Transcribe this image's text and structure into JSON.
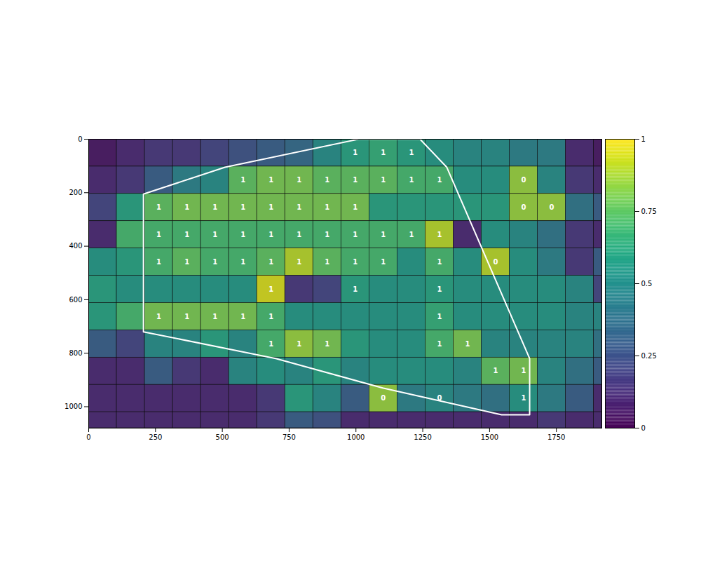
{
  "chart_data": {
    "type": "heatmap",
    "color": "viridis",
    "xlim": [
      0,
      1920
    ],
    "ylim": [
      0,
      1080
    ],
    "xticks": [
      0,
      250,
      500,
      750,
      1000,
      1250,
      1500,
      1750
    ],
    "yticks": [
      0,
      200,
      400,
      600,
      800,
      1000
    ],
    "x_edges": [
      0,
      105,
      210,
      315,
      420,
      525,
      630,
      735,
      840,
      945,
      1050,
      1155,
      1260,
      1365,
      1470,
      1575,
      1680,
      1785,
      1890,
      1920
    ],
    "y_edges": [
      0,
      102,
      204,
      306,
      408,
      510,
      612,
      714,
      816,
      918,
      1020,
      1080
    ],
    "values": [
      [
        0.05,
        0.1,
        0.15,
        0.15,
        0.2,
        0.25,
        0.3,
        0.35,
        0.5,
        0.6,
        0.65,
        0.6,
        0.55,
        0.5,
        0.5,
        0.45,
        0.45,
        0.1,
        0.05
      ],
      [
        0.1,
        0.15,
        0.3,
        0.45,
        0.5,
        0.75,
        0.8,
        0.8,
        0.75,
        0.75,
        0.75,
        0.7,
        0.7,
        0.55,
        0.55,
        0.85,
        0.5,
        0.15,
        0.1
      ],
      [
        0.2,
        0.6,
        0.75,
        0.8,
        0.8,
        0.8,
        0.8,
        0.8,
        0.8,
        0.8,
        0.6,
        0.6,
        0.6,
        0.6,
        0.6,
        0.85,
        0.85,
        0.4,
        0.3
      ],
      [
        0.1,
        0.7,
        0.7,
        0.7,
        0.7,
        0.7,
        0.7,
        0.7,
        0.7,
        0.7,
        0.7,
        0.7,
        0.9,
        0.1,
        0.55,
        0.5,
        0.4,
        0.15,
        0.1
      ],
      [
        0.55,
        0.6,
        0.7,
        0.75,
        0.7,
        0.7,
        0.75,
        0.9,
        0.75,
        0.7,
        0.7,
        0.55,
        0.7,
        0.55,
        0.9,
        0.55,
        0.45,
        0.15,
        0.3
      ],
      [
        0.6,
        0.55,
        0.55,
        0.55,
        0.55,
        0.55,
        0.95,
        0.15,
        0.2,
        0.6,
        0.55,
        0.55,
        0.6,
        0.55,
        0.55,
        0.55,
        0.55,
        0.5,
        0.2
      ],
      [
        0.6,
        0.7,
        0.8,
        0.8,
        0.8,
        0.8,
        0.7,
        0.55,
        0.55,
        0.55,
        0.55,
        0.55,
        0.65,
        0.55,
        0.55,
        0.55,
        0.55,
        0.5,
        0.5
      ],
      [
        0.3,
        0.2,
        0.5,
        0.5,
        0.6,
        0.5,
        0.7,
        0.85,
        0.8,
        0.6,
        0.55,
        0.55,
        0.7,
        0.8,
        0.5,
        0.5,
        0.5,
        0.5,
        0.4
      ],
      [
        0.1,
        0.1,
        0.3,
        0.15,
        0.1,
        0.5,
        0.55,
        0.5,
        0.6,
        0.5,
        0.55,
        0.55,
        0.55,
        0.5,
        0.75,
        0.8,
        0.5,
        0.4,
        0.3
      ],
      [
        0.1,
        0.1,
        0.1,
        0.1,
        0.1,
        0.1,
        0.15,
        0.6,
        0.5,
        0.3,
        0.85,
        0.45,
        0.5,
        0.45,
        0.4,
        0.55,
        0.45,
        0.3,
        0.1
      ],
      [
        0.1,
        0.1,
        0.1,
        0.1,
        0.1,
        0.1,
        0.15,
        0.3,
        0.25,
        0.1,
        0.1,
        0.1,
        0.1,
        0.1,
        0.1,
        0.1,
        0.15,
        0.1,
        0.1
      ]
    ],
    "cell_labels": [
      [
        null,
        null,
        null,
        null,
        null,
        null,
        null,
        null,
        null,
        1,
        1,
        1,
        null,
        null,
        null,
        null,
        null,
        null,
        null
      ],
      [
        null,
        null,
        null,
        null,
        null,
        1,
        1,
        1,
        1,
        1,
        1,
        1,
        1,
        null,
        null,
        0,
        null,
        null,
        null
      ],
      [
        null,
        null,
        1,
        1,
        1,
        1,
        1,
        1,
        1,
        1,
        null,
        null,
        null,
        null,
        null,
        0,
        0,
        null,
        null
      ],
      [
        null,
        null,
        1,
        1,
        1,
        1,
        1,
        1,
        1,
        1,
        1,
        1,
        1,
        null,
        null,
        null,
        null,
        null,
        null
      ],
      [
        null,
        null,
        1,
        1,
        1,
        1,
        1,
        1,
        1,
        1,
        1,
        null,
        1,
        null,
        0,
        null,
        null,
        null,
        null
      ],
      [
        null,
        null,
        null,
        null,
        null,
        null,
        1,
        null,
        null,
        1,
        null,
        null,
        1,
        null,
        null,
        null,
        null,
        null,
        null
      ],
      [
        null,
        null,
        1,
        1,
        1,
        1,
        1,
        null,
        null,
        null,
        null,
        null,
        1,
        null,
        null,
        null,
        null,
        null,
        null
      ],
      [
        null,
        null,
        null,
        null,
        null,
        null,
        1,
        1,
        1,
        null,
        null,
        null,
        1,
        1,
        null,
        null,
        null,
        null,
        null
      ],
      [
        null,
        null,
        null,
        null,
        null,
        null,
        null,
        null,
        null,
        null,
        null,
        null,
        null,
        null,
        1,
        1,
        null,
        null,
        null
      ],
      [
        null,
        null,
        null,
        null,
        null,
        null,
        null,
        null,
        null,
        null,
        0,
        null,
        0,
        null,
        null,
        1,
        null,
        null,
        null
      ],
      [
        null,
        null,
        null,
        null,
        null,
        null,
        null,
        null,
        null,
        null,
        null,
        null,
        null,
        null,
        null,
        null,
        null,
        null,
        null
      ]
    ],
    "region": [
      [
        205,
        205
      ],
      [
        510,
        105
      ],
      [
        1010,
        0
      ],
      [
        1240,
        0
      ],
      [
        1340,
        105
      ],
      [
        1650,
        820
      ],
      [
        1650,
        1030
      ],
      [
        1545,
        1030
      ],
      [
        1100,
        930
      ],
      [
        700,
        820
      ],
      [
        205,
        720
      ],
      [
        205,
        205
      ]
    ],
    "colorbar": {
      "range": [
        0,
        1
      ],
      "ticks": [
        0,
        0.25,
        0.5,
        0.75,
        1
      ]
    }
  }
}
